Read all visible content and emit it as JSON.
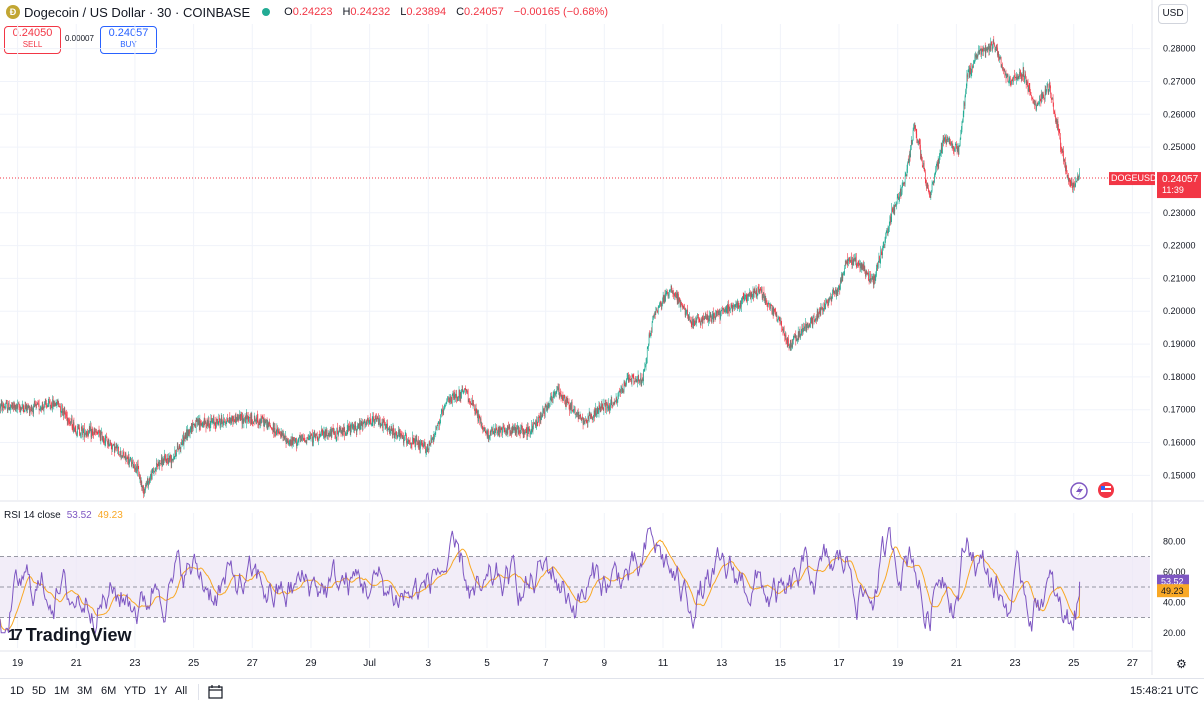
{
  "header": {
    "title": "Dogecoin / US Dollar · 30 · COINBASE",
    "coin_glyph": "Ð",
    "open_label": "O",
    "open": "0.24223",
    "high_label": "H",
    "high": "0.24232",
    "low_label": "L",
    "low": "0.23894",
    "close_label": "C",
    "close": "0.24057",
    "change": "−0.00165 (−0.68%)"
  },
  "trade": {
    "sell_price": "0.24050",
    "sell_label": "SELL",
    "spread": "0.00007",
    "buy_price": "0.24057",
    "buy_label": "BUY"
  },
  "currency": "USD",
  "symbol_tag": "DOGEUSD",
  "price_tag": {
    "price": "0.24057",
    "countdown": "11:39"
  },
  "rsi": {
    "label": "RSI 14 close",
    "rsi_value": "53.52",
    "ma_value": "49.23"
  },
  "brand": {
    "name": "TradingView",
    "mark": "17"
  },
  "timeframes": [
    "1D",
    "5D",
    "1M",
    "3M",
    "6M",
    "YTD",
    "1Y",
    "All"
  ],
  "clock": "15:48:21 UTC",
  "colors": {
    "up": "#22ab94",
    "down": "#f23645",
    "rsi": "#7e57c2",
    "rsi_ma": "#f9a825",
    "band": "#ede7f6"
  },
  "chart_data": [
    {
      "type": "candlestick",
      "title": "Dogecoin / US Dollar · 30 · COINBASE",
      "ylim": [
        0.1425,
        0.2875
      ],
      "y_ticks": [
        "0.28000",
        "0.27000",
        "0.26000",
        "0.25000",
        "0.23000",
        "0.22000",
        "0.21000",
        "0.20000",
        "0.19000",
        "0.18000",
        "0.17000",
        "0.16000",
        "0.15000"
      ],
      "x_ticks": [
        "19",
        "21",
        "23",
        "25",
        "27",
        "29",
        "Jul",
        "3",
        "5",
        "7",
        "9",
        "11",
        "13",
        "15",
        "17",
        "19",
        "21",
        "23",
        "25",
        "27"
      ],
      "x_tick_days": [
        0,
        2,
        4,
        6,
        8,
        10,
        12,
        14,
        16,
        18,
        20,
        22,
        24,
        26,
        28,
        30,
        32,
        34,
        36,
        38
      ],
      "x_range_days": [
        -0.6,
        38.6
      ],
      "path_days": [
        -0.6,
        0.5,
        1.4,
        2.0,
        2.8,
        3.5,
        4.1,
        4.3,
        4.8,
        5.3,
        6.0,
        7.0,
        7.6,
        8.4,
        9.3,
        10.2,
        10.9,
        11.5,
        12.3,
        12.8,
        13.4,
        14.0,
        14.7,
        15.3,
        16.0,
        16.8,
        17.5,
        18.4,
        19.3,
        20.0,
        20.4,
        20.8,
        21.3,
        21.7,
        22.3,
        23.0,
        23.9,
        24.7,
        25.3,
        26.0,
        26.3,
        27.2,
        28.0,
        28.3,
        28.7,
        29.2,
        29.8,
        30.3,
        30.6,
        31.1,
        31.6,
        32.1,
        32.4,
        32.8,
        33.3,
        33.8,
        34.3,
        34.7,
        35.2,
        35.5,
        35.8,
        36.0,
        36.2
      ],
      "path_values": [
        0.171,
        0.1705,
        0.172,
        0.164,
        0.1625,
        0.157,
        0.152,
        0.1455,
        0.1535,
        0.1555,
        0.1655,
        0.1665,
        0.1675,
        0.1665,
        0.16,
        0.162,
        0.163,
        0.1645,
        0.167,
        0.163,
        0.1605,
        0.158,
        0.173,
        0.1755,
        0.1625,
        0.164,
        0.1635,
        0.176,
        0.1665,
        0.171,
        0.172,
        0.1795,
        0.1785,
        0.199,
        0.207,
        0.1965,
        0.199,
        0.203,
        0.2065,
        0.197,
        0.1895,
        0.198,
        0.207,
        0.216,
        0.2145,
        0.209,
        0.229,
        0.241,
        0.257,
        0.2345,
        0.2525,
        0.249,
        0.272,
        0.2785,
        0.2815,
        0.27,
        0.2725,
        0.2625,
        0.2685,
        0.2545,
        0.2415,
        0.238,
        0.2405
      ],
      "last_price": 0.24057,
      "last_price_label": "0.24057"
    },
    {
      "type": "line",
      "title": "RSI 14 close",
      "series": [
        {
          "name": "RSI",
          "last": 53.52,
          "mean": 50,
          "min": 20,
          "max": 89
        },
        {
          "name": "RSI-based MA",
          "last": 49.23
        }
      ],
      "ylim": [
        10,
        92
      ],
      "y_ticks": [
        "80.00",
        "60.00",
        "40.00",
        "20.00"
      ],
      "bands": {
        "upper": 70,
        "middle": 50,
        "lower": 30
      },
      "last_labels": [
        "53.52",
        "49.23"
      ]
    }
  ]
}
